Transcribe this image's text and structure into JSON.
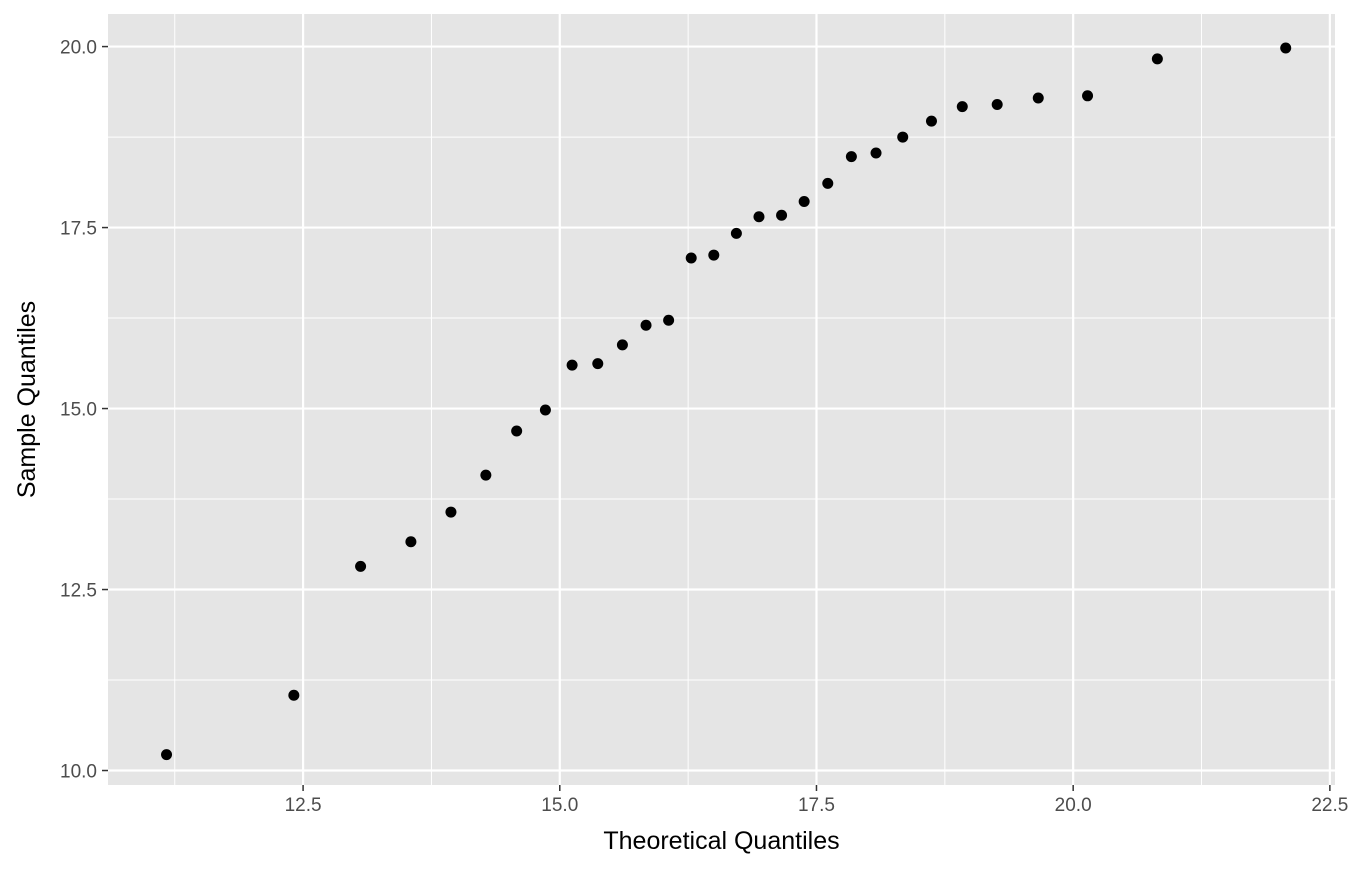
{
  "chart_data": {
    "type": "scatter",
    "title": "",
    "xlabel": "Theoretical Quantiles",
    "ylabel": "Sample Quantiles",
    "xlim": [
      10.6,
      22.55
    ],
    "ylim": [
      9.8,
      20.45
    ],
    "x_ticks": [
      12.5,
      15.0,
      17.5,
      20.0,
      22.5
    ],
    "y_ticks": [
      10.0,
      12.5,
      15.0,
      17.5,
      20.0
    ],
    "x_tick_labels": [
      "12.5",
      "15.0",
      "17.5",
      "20.0",
      "22.5"
    ],
    "y_tick_labels": [
      "10.0",
      "12.5",
      "15.0",
      "17.5",
      "20.0"
    ],
    "grid": true,
    "colors": {
      "panel": "#e5e5e5",
      "grid": "#ffffff",
      "point": "#000000",
      "tick": "#333333"
    },
    "points": [
      {
        "x": 11.17,
        "y": 10.22
      },
      {
        "x": 12.41,
        "y": 11.04
      },
      {
        "x": 13.06,
        "y": 12.82
      },
      {
        "x": 13.55,
        "y": 13.16
      },
      {
        "x": 13.94,
        "y": 13.57
      },
      {
        "x": 14.28,
        "y": 14.08
      },
      {
        "x": 14.58,
        "y": 14.69
      },
      {
        "x": 14.86,
        "y": 14.98
      },
      {
        "x": 15.12,
        "y": 15.6
      },
      {
        "x": 15.37,
        "y": 15.62
      },
      {
        "x": 15.61,
        "y": 15.88
      },
      {
        "x": 15.84,
        "y": 16.15
      },
      {
        "x": 16.06,
        "y": 16.22
      },
      {
        "x": 16.28,
        "y": 17.08
      },
      {
        "x": 16.5,
        "y": 17.12
      },
      {
        "x": 16.72,
        "y": 17.42
      },
      {
        "x": 16.94,
        "y": 17.65
      },
      {
        "x": 17.16,
        "y": 17.67
      },
      {
        "x": 17.38,
        "y": 17.86
      },
      {
        "x": 17.61,
        "y": 18.11
      },
      {
        "x": 17.84,
        "y": 18.48
      },
      {
        "x": 18.08,
        "y": 18.53
      },
      {
        "x": 18.34,
        "y": 18.75
      },
      {
        "x": 18.62,
        "y": 18.97
      },
      {
        "x": 18.92,
        "y": 19.17
      },
      {
        "x": 19.26,
        "y": 19.2
      },
      {
        "x": 19.66,
        "y": 19.29
      },
      {
        "x": 20.14,
        "y": 19.32
      },
      {
        "x": 20.82,
        "y": 19.83
      },
      {
        "x": 22.07,
        "y": 19.98
      }
    ]
  }
}
